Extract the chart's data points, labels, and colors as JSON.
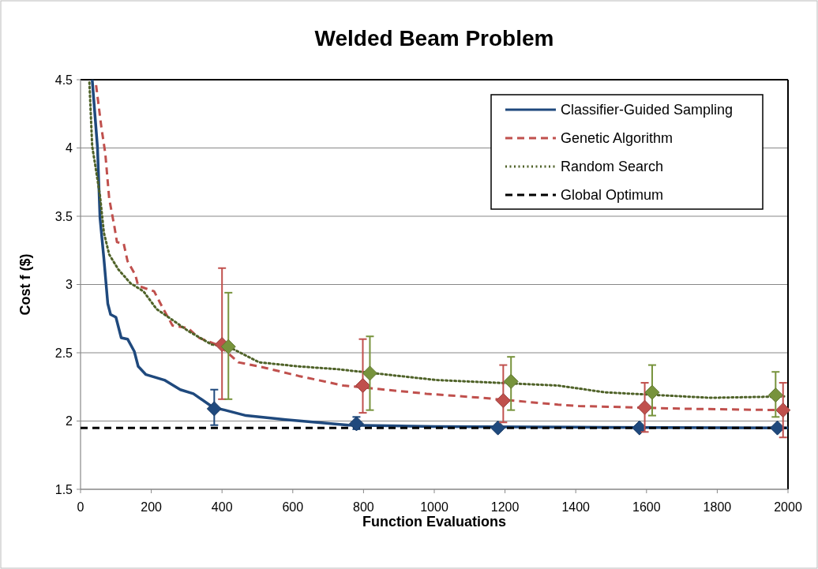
{
  "chart_data": {
    "type": "line",
    "title": "Welded Beam Problem",
    "xlabel": "Function Evaluations",
    "ylabel": "Cost f ($)",
    "xlim": [
      0,
      2000
    ],
    "xticks": [
      0,
      200,
      400,
      600,
      800,
      1000,
      1200,
      1400,
      1600,
      1800,
      2000
    ],
    "ylim": [
      1.5,
      4.5
    ],
    "yticks": [
      1.5,
      2,
      2.5,
      3,
      3.5,
      4,
      4.5
    ],
    "grid": "y",
    "legend": "top right",
    "marker": "none",
    "series": [
      {
        "name": "Classifier-Guided Sampling",
        "color": "#1f497d",
        "line_style": "solid",
        "x": [
          33,
          48,
          55,
          66,
          77,
          85,
          100,
          115,
          133,
          152,
          163,
          185,
          237,
          282,
          319,
          375,
          408,
          468,
          580,
          758,
          1000,
          1400,
          2000
        ],
        "values": [
          4.5,
          4.0,
          3.49,
          3.19,
          2.86,
          2.78,
          2.76,
          2.61,
          2.6,
          2.51,
          2.4,
          2.34,
          2.3,
          2.23,
          2.2,
          2.1,
          2.08,
          2.04,
          2.01,
          1.97,
          1.96,
          1.955,
          1.95
        ]
      },
      {
        "name": "Genetic Algorithm",
        "color": "#c0504d",
        "line_style": "dashed",
        "x": [
          44,
          59,
          70,
          81,
          96,
          103,
          122,
          133,
          155,
          163,
          208,
          230,
          260,
          304,
          334,
          394,
          446,
          505,
          617,
          743,
          978,
          1134,
          1350,
          1409,
          1707,
          1975,
          2000
        ],
        "values": [
          4.46,
          4.15,
          3.96,
          3.63,
          3.42,
          3.31,
          3.3,
          3.17,
          3.07,
          2.99,
          2.95,
          2.84,
          2.7,
          2.68,
          2.61,
          2.55,
          2.43,
          2.4,
          2.33,
          2.26,
          2.2,
          2.17,
          2.12,
          2.11,
          2.09,
          2.08,
          2.08
        ]
      },
      {
        "name": "Random Search",
        "color": "#4f6228",
        "line_style": "dotted",
        "x": [
          25,
          33,
          40,
          55,
          66,
          81,
          107,
          141,
          178,
          215,
          260,
          304,
          371,
          418,
          505,
          617,
          725,
          1007,
          1350,
          1484,
          1781,
          1989
        ],
        "values": [
          4.48,
          4.01,
          3.9,
          3.65,
          3.38,
          3.22,
          3.11,
          3.01,
          2.95,
          2.82,
          2.74,
          2.66,
          2.56,
          2.545,
          2.43,
          2.4,
          2.38,
          2.3,
          2.26,
          2.21,
          2.17,
          2.18
        ]
      },
      {
        "name": "Global Optimum",
        "color": "#000000",
        "line_style": "dashed",
        "x": [
          0,
          2000
        ],
        "values": [
          1.95,
          1.95
        ]
      },
      {
        "type": "scatter",
        "marker": "diamond",
        "color": "#1f497d",
        "x": [
          378,
          780,
          1180,
          1580,
          1970
        ],
        "values": [
          2.09,
          1.98,
          1.95,
          1.95,
          1.95
        ],
        "errors": [
          [
            1.97,
            2.23
          ],
          [
            1.94,
            2.03
          ],
          null,
          null,
          null
        ]
      },
      {
        "type": "scatter",
        "marker": "diamond",
        "color": "#c0504d",
        "x": [
          400,
          798,
          1195,
          1595,
          1986
        ],
        "values": [
          2.56,
          2.26,
          2.15,
          2.1,
          2.08
        ],
        "errors": [
          [
            2.16,
            3.12
          ],
          [
            2.06,
            2.6
          ],
          [
            1.99,
            2.41
          ],
          [
            1.92,
            2.28
          ],
          [
            1.88,
            2.28
          ]
        ]
      },
      {
        "type": "scatter",
        "marker": "diamond",
        "color": "#77933c",
        "x": [
          418,
          818,
          1217,
          1616,
          1965
        ],
        "values": [
          2.545,
          2.35,
          2.29,
          2.21,
          2.19
        ],
        "errors": [
          [
            2.16,
            2.94
          ],
          [
            2.08,
            2.62
          ],
          [
            2.08,
            2.47
          ],
          [
            2.04,
            2.41
          ],
          [
            2.03,
            2.36
          ]
        ]
      }
    ]
  }
}
